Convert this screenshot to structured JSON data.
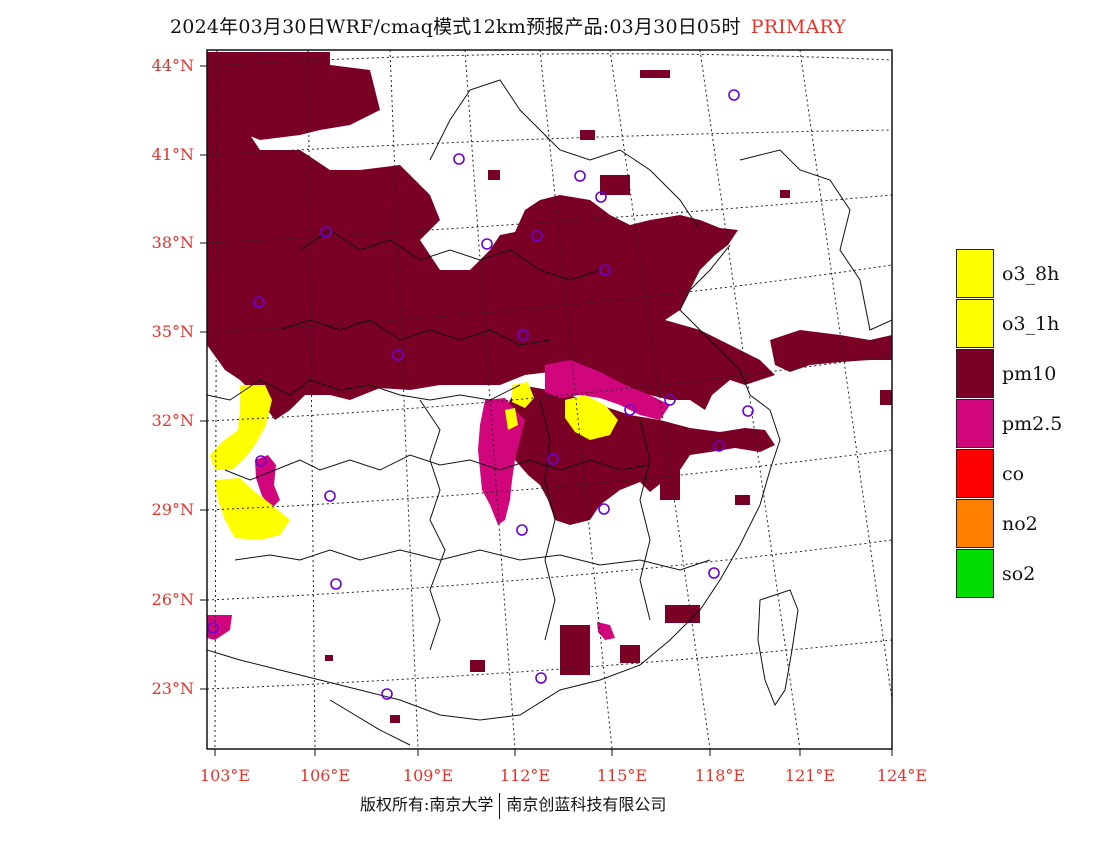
{
  "title": {
    "main": "2024年03月30日WRF/cmaq模式12km预报产品:03月30日05时",
    "tag": "PRIMARY"
  },
  "axes": {
    "lat_labels": [
      "44°N",
      "41°N",
      "38°N",
      "35°N",
      "32°N",
      "29°N",
      "26°N",
      "23°N"
    ],
    "lon_labels": [
      "103°E",
      "106°E",
      "109°E",
      "112°E",
      "115°E",
      "118°E",
      "121°E",
      "124°E"
    ]
  },
  "legend": [
    {
      "label": "o3_8h",
      "color": "#ffff00"
    },
    {
      "label": "o3_1h",
      "color": "#ffff00"
    },
    {
      "label": "pm10",
      "color": "#7a0026"
    },
    {
      "label": "pm2.5",
      "color": "#d1067d"
    },
    {
      "label": "co",
      "color": "#ff0000"
    },
    {
      "label": "no2",
      "color": "#ff7f00"
    },
    {
      "label": "so2",
      "color": "#00dd00"
    }
  ],
  "footer": {
    "left": "版权所有:南京大学",
    "right": "南京创蓝科技有限公司"
  }
}
